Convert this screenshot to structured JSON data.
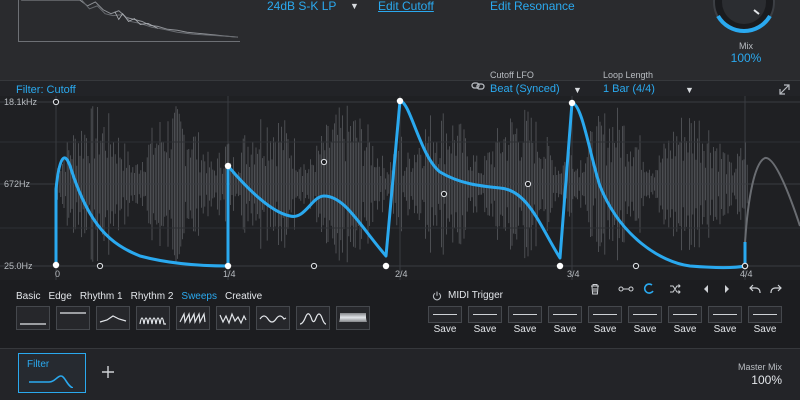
{
  "header": {
    "filter_type": "24dB S-K LP",
    "edit_cutoff": "Edit Cutoff",
    "edit_resonance": "Edit Resonance"
  },
  "mix": {
    "label": "Mix",
    "value": "100%"
  },
  "filter": {
    "title": "Filter: Cutoff",
    "lfo_label": "Cutoff LFO",
    "lfo_value": "Beat (Synced)",
    "loop_label": "Loop Length",
    "loop_value": "1 Bar (4/4)"
  },
  "graph": {
    "y_labels": [
      "18.1kHz",
      "672Hz",
      "25.0Hz"
    ],
    "x_labels": [
      "0",
      "1/4",
      "2/4",
      "3/4",
      "4/4"
    ]
  },
  "shapes": {
    "tabs": [
      {
        "label": "Basic",
        "active": false
      },
      {
        "label": "Edge",
        "active": false
      },
      {
        "label": "Rhythm 1",
        "active": false
      },
      {
        "label": "Rhythm 2",
        "active": false
      },
      {
        "label": "Sweeps",
        "active": true
      },
      {
        "label": "Creative",
        "active": false
      }
    ]
  },
  "midi": {
    "label": "MIDI Trigger"
  },
  "saves": {
    "labels": [
      "Save",
      "Save",
      "Save",
      "Save",
      "Save",
      "Save",
      "Save",
      "Save",
      "Save"
    ]
  },
  "bottom": {
    "module_label": "Filter",
    "master_label": "Master Mix",
    "master_value": "100%"
  },
  "colors": {
    "accent": "#2aa9ef",
    "background": "#1c1d20",
    "panel": "#2a2b2e"
  }
}
